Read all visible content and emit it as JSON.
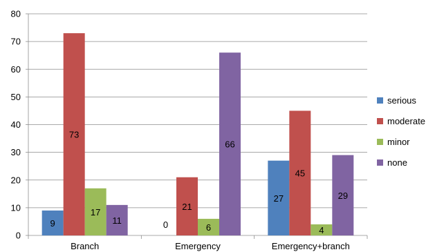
{
  "chart_data": {
    "type": "bar",
    "title": "",
    "xlabel": "",
    "ylabel": "",
    "categories": [
      "Branch",
      "Emergency",
      "Emergency+branch"
    ],
    "ylim": [
      0,
      80
    ],
    "yticks": [
      0,
      10,
      20,
      30,
      40,
      50,
      60,
      70,
      80
    ],
    "grid": "horizontal",
    "legend_position": "right",
    "series": [
      {
        "name": "serious",
        "color": "#4f81bd",
        "values": [
          9,
          0,
          27
        ]
      },
      {
        "name": "moderate",
        "color": "#c0504d",
        "values": [
          73,
          21,
          45
        ]
      },
      {
        "name": "minor",
        "color": "#9bbb59",
        "values": [
          17,
          6,
          4
        ]
      },
      {
        "name": "none",
        "color": "#8064a2",
        "values": [
          11,
          66,
          29
        ]
      }
    ]
  }
}
